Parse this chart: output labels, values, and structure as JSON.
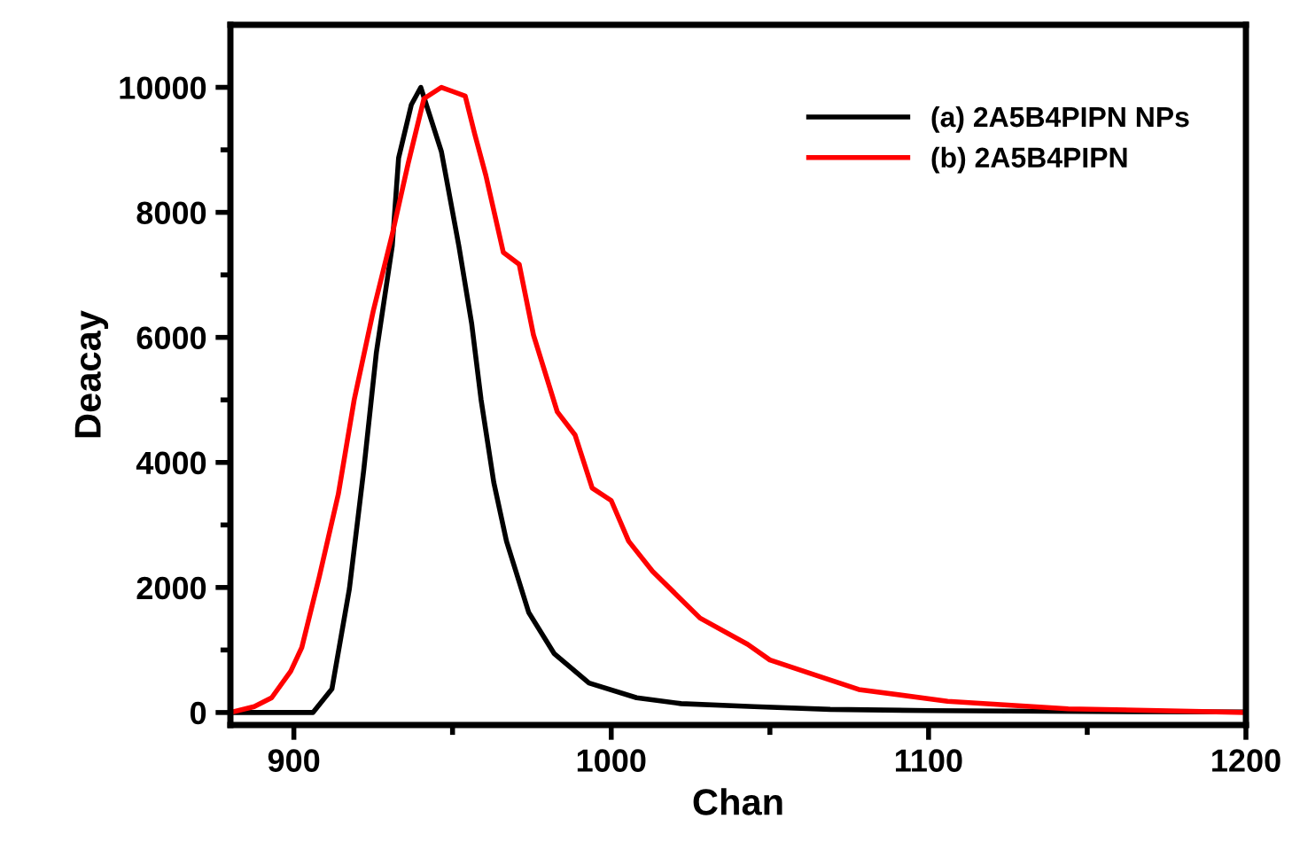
{
  "chart_data": {
    "type": "line",
    "xlabel": "Chan",
    "ylabel": "Deacay",
    "xlim": [
      880,
      1200
    ],
    "ylim": [
      -200,
      11000
    ],
    "xticks": [
      900,
      1000,
      1100,
      1200
    ],
    "yticks": [
      0,
      2000,
      4000,
      6000,
      8000,
      10000
    ],
    "grid": false,
    "legend": "top right",
    "marker": "none",
    "line_style": "solid",
    "series": [
      {
        "name": "(a) 2A5B4PIPN NPs",
        "color": "#000000",
        "x": [
          880,
          906,
          912,
          917.5,
          922,
          926,
          931,
          933,
          937,
          940,
          946.5,
          952,
          956,
          959,
          963,
          967,
          974,
          982,
          993,
          1008,
          1022,
          1045,
          1069,
          1100,
          1150,
          1200
        ],
        "values": [
          0,
          0,
          378,
          1980,
          3870,
          5760,
          7460,
          8870,
          9720,
          10000,
          8970,
          7460,
          6230,
          5000,
          3680,
          2740,
          1600,
          944,
          472,
          236,
          142,
          94,
          50,
          30,
          15,
          10
        ]
      },
      {
        "name": "(b) 2A5B4PIPN",
        "color": "#ff0000",
        "x": [
          880,
          887.5,
          893,
          899,
          902.5,
          908,
          914,
          919,
          925,
          931,
          936,
          941,
          946.5,
          954,
          957,
          960.5,
          966,
          971,
          975.5,
          983,
          988.6,
          994,
          1000,
          1005.5,
          1013,
          1028,
          1043,
          1050,
          1078,
          1106,
          1144,
          1200
        ],
        "values": [
          0,
          94,
          236,
          660,
          1040,
          2170,
          3490,
          5000,
          6420,
          7650,
          8780,
          9820,
          10000,
          9860,
          9250,
          8590,
          7360,
          7170,
          6040,
          4810,
          4440,
          3590,
          3390,
          2740,
          2260,
          1510,
          1090,
          840,
          368,
          180,
          60,
          0
        ]
      }
    ]
  }
}
